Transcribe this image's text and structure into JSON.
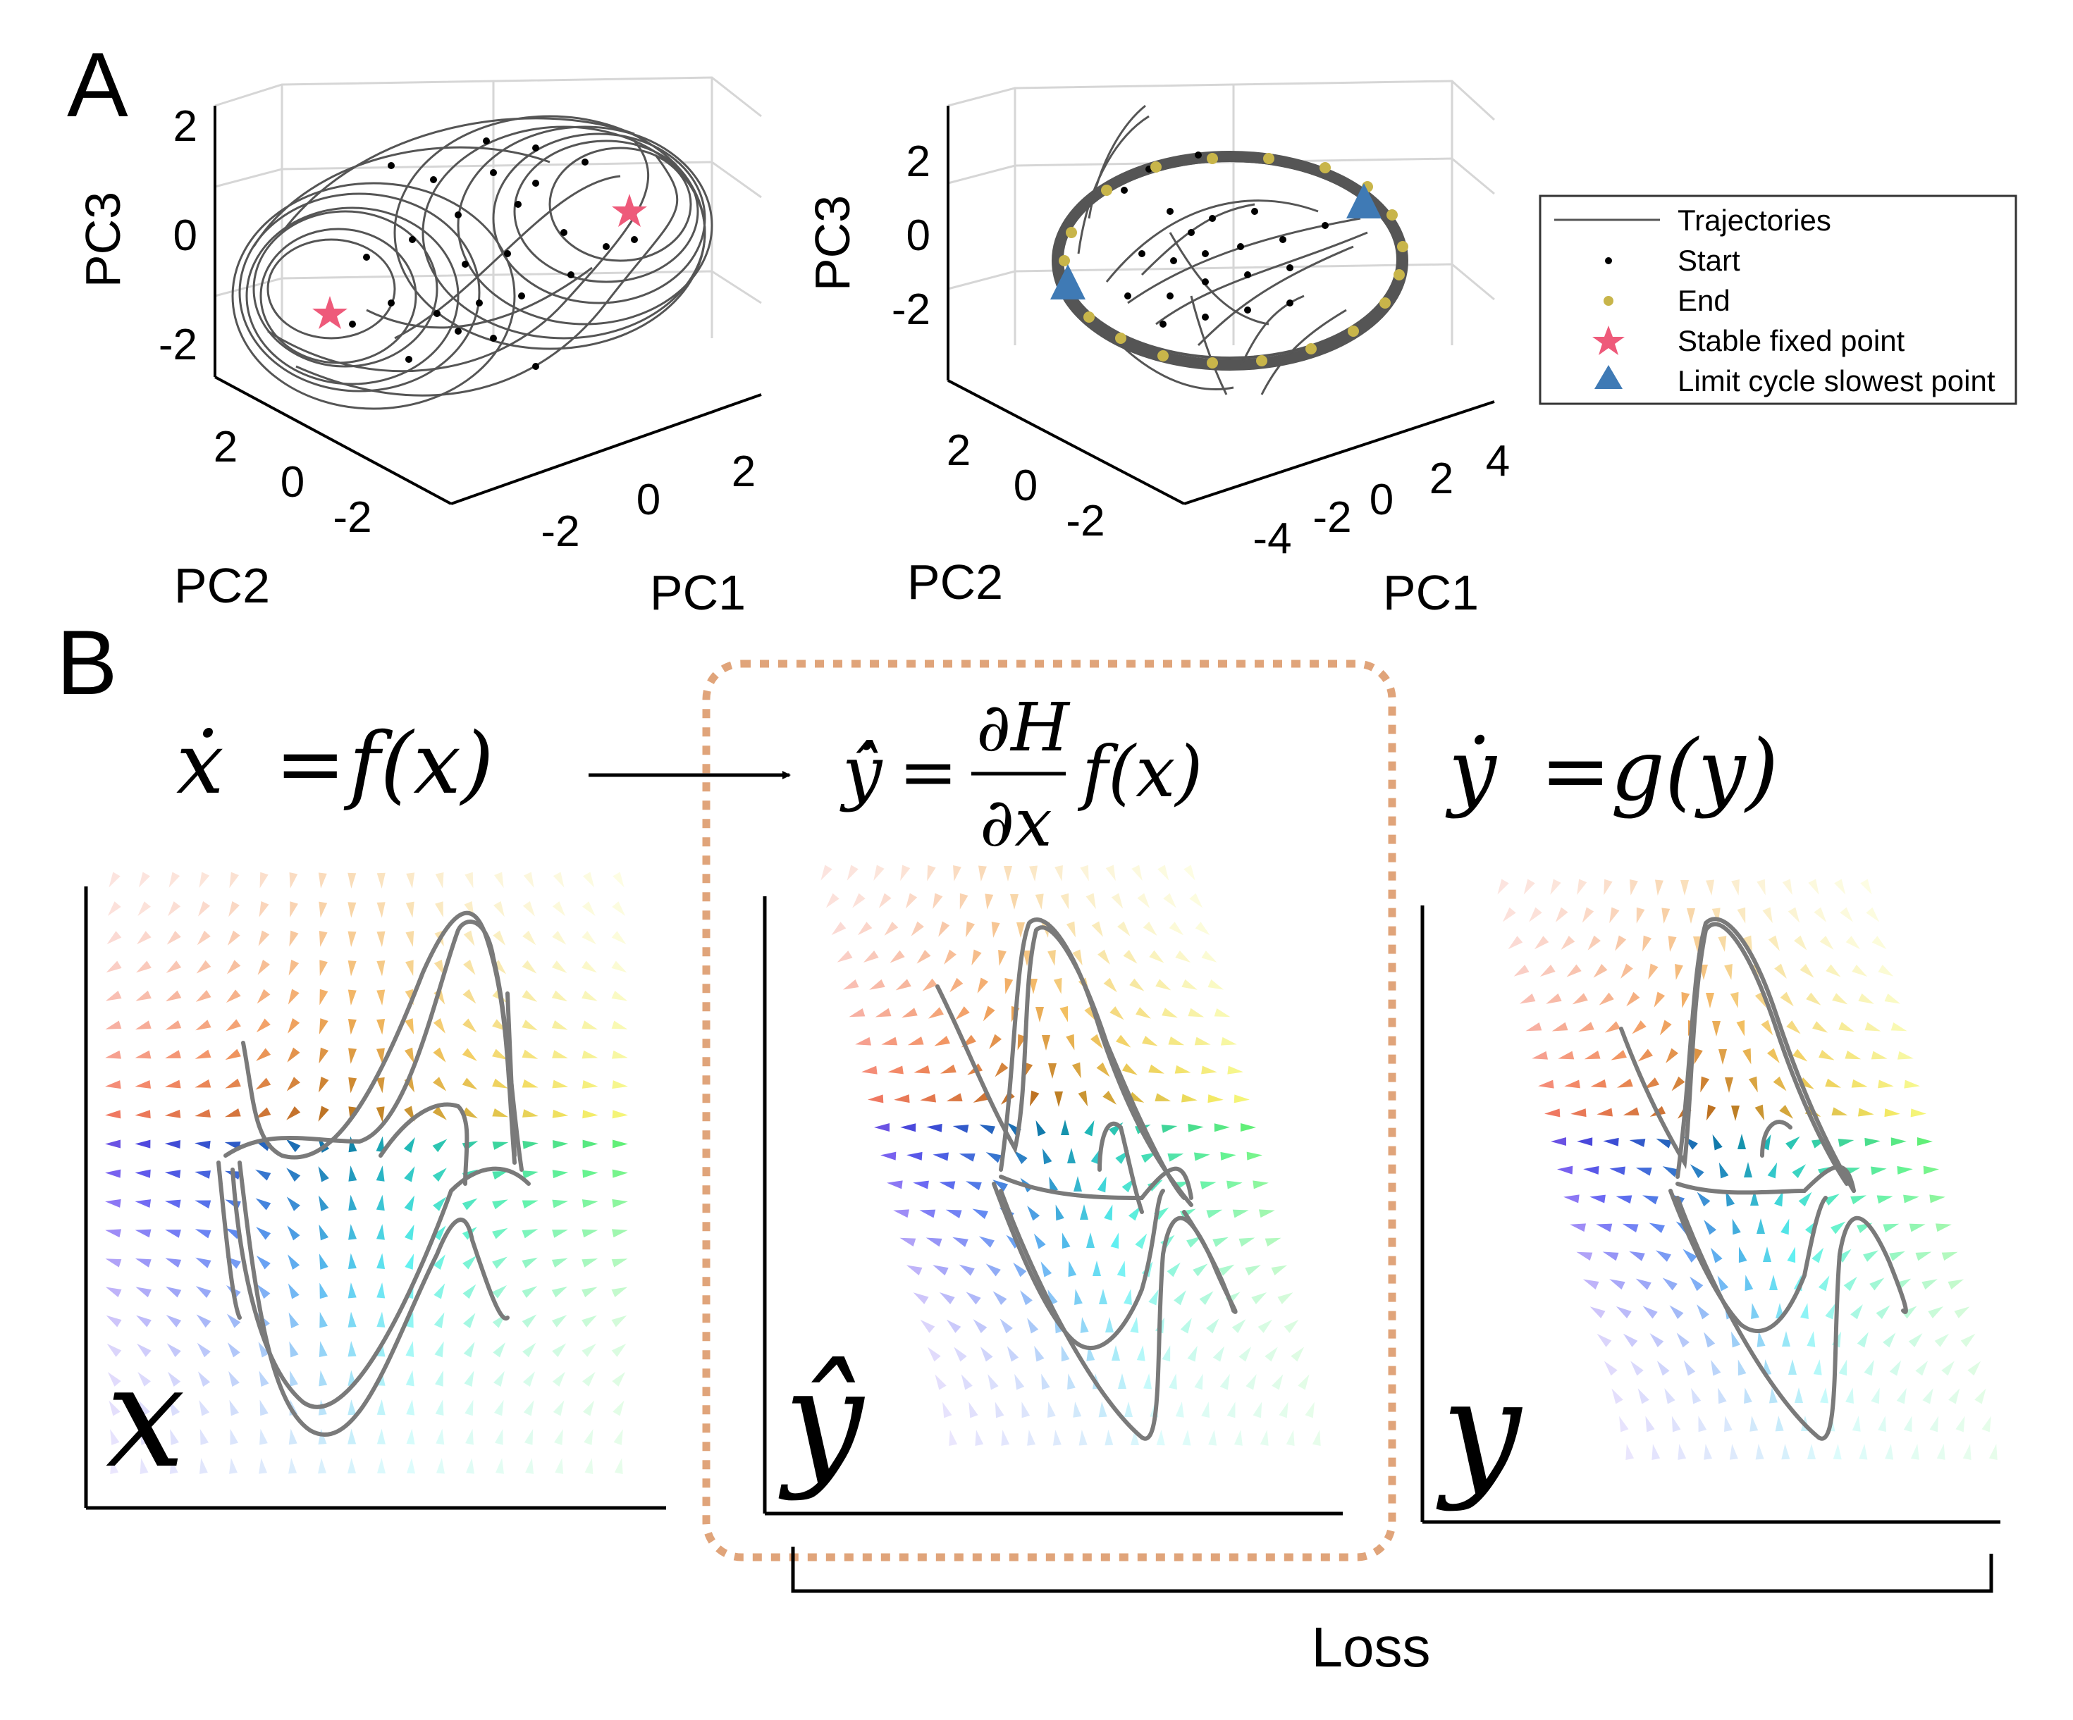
{
  "panel_a": {
    "label": "A",
    "plot_left": {
      "pc3_label": "PC3",
      "pc2_label": "PC2",
      "pc1_label": "PC1",
      "z_ticks": [
        "2",
        "0",
        "-2"
      ],
      "y_ticks": [
        "2",
        "0",
        "-2"
      ],
      "x_ticks": [
        "-2",
        "0",
        "2"
      ]
    },
    "plot_right": {
      "pc3_label": "PC3",
      "pc2_label": "PC2",
      "pc1_label": "PC1",
      "z_ticks": [
        "2",
        "0",
        "-2"
      ],
      "y_ticks": [
        "2",
        "0",
        "-2"
      ],
      "x_ticks": [
        "-4",
        "-2",
        "0",
        "2",
        "4"
      ]
    },
    "legend": {
      "items": [
        {
          "label": "Trajectories",
          "marker": "line",
          "color": "#555555"
        },
        {
          "label": "Start",
          "marker": "dot",
          "color": "#000000"
        },
        {
          "label": "End",
          "marker": "dot",
          "color": "#c8b54a"
        },
        {
          "label": "Stable fixed point",
          "marker": "star",
          "color": "#ee5a7a"
        },
        {
          "label": "Limit cycle slowest point",
          "marker": "triangle",
          "color": "#3f7ab5"
        }
      ]
    }
  },
  "panel_b": {
    "label": "B",
    "eq_x_lhs": "ẋ",
    "eq_x_eq": "=",
    "eq_x_rhs": "f(x)",
    "eq_yhat_lhs": "ŷ̇",
    "eq_yhat_eq": "=",
    "eq_yhat_num": "∂H",
    "eq_yhat_den": "∂x",
    "eq_yhat_rhs": "f(x)",
    "eq_y_lhs": "ẏ",
    "eq_y_eq": "=",
    "eq_y_rhs": "g(y)",
    "var_x": "x",
    "var_yhat": "ŷ",
    "var_y": "y",
    "loss_label": "Loss",
    "highlight_color": "#e0a47a"
  }
}
